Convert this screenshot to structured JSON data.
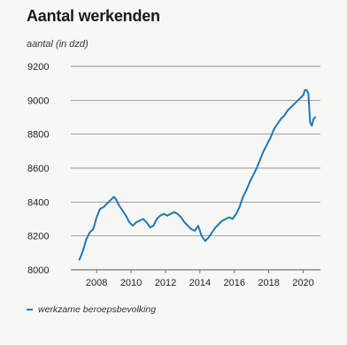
{
  "chart_data": {
    "type": "line",
    "title": "Aantal werkenden",
    "ylabel": "aantal (in dzd)",
    "xlabel": "",
    "ylim": [
      8000,
      9200
    ],
    "xlim": [
      2006.5,
      2021.0
    ],
    "yticks": [
      8000,
      8200,
      8400,
      8600,
      8800,
      9000,
      9200
    ],
    "xticks": [
      2008,
      2010,
      2012,
      2014,
      2016,
      2018,
      2020
    ],
    "ytick_labels": [
      "8000",
      "8200",
      "8400",
      "8600",
      "8800",
      "9000",
      "9200"
    ],
    "xtick_labels": [
      "2008",
      "2010",
      "2012",
      "2014",
      "2016",
      "2018",
      "2020"
    ],
    "grid": "horizontal",
    "legend_position": "bottom-left",
    "series": [
      {
        "name": "werkzame beroepsbevolking",
        "color": "#1f78b4",
        "x": [
          2007.0,
          2007.2,
          2007.4,
          2007.6,
          2007.8,
          2008.0,
          2008.2,
          2008.4,
          2008.6,
          2008.8,
          2009.0,
          2009.1,
          2009.3,
          2009.5,
          2009.7,
          2009.9,
          2010.1,
          2010.3,
          2010.5,
          2010.7,
          2010.9,
          2011.1,
          2011.3,
          2011.5,
          2011.7,
          2011.9,
          2012.1,
          2012.3,
          2012.5,
          2012.7,
          2012.9,
          2013.1,
          2013.3,
          2013.5,
          2013.7,
          2013.9,
          2014.1,
          2014.3,
          2014.5,
          2014.7,
          2014.9,
          2015.1,
          2015.3,
          2015.5,
          2015.7,
          2015.9,
          2016.1,
          2016.3,
          2016.5,
          2016.7,
          2016.9,
          2017.1,
          2017.3,
          2017.5,
          2017.7,
          2017.9,
          2018.1,
          2018.3,
          2018.5,
          2018.7,
          2018.9,
          2019.1,
          2019.3,
          2019.5,
          2019.7,
          2019.9,
          2020.0,
          2020.1,
          2020.2,
          2020.3,
          2020.4,
          2020.5,
          2020.6,
          2020.7
        ],
        "values": [
          8060,
          8110,
          8180,
          8220,
          8240,
          8310,
          8360,
          8370,
          8390,
          8410,
          8430,
          8420,
          8380,
          8350,
          8320,
          8280,
          8260,
          8280,
          8290,
          8300,
          8280,
          8250,
          8260,
          8300,
          8320,
          8330,
          8320,
          8330,
          8340,
          8330,
          8310,
          8280,
          8260,
          8240,
          8230,
          8260,
          8200,
          8170,
          8190,
          8220,
          8250,
          8270,
          8290,
          8300,
          8310,
          8300,
          8330,
          8370,
          8430,
          8470,
          8520,
          8560,
          8600,
          8650,
          8700,
          8740,
          8780,
          8830,
          8860,
          8890,
          8910,
          8940,
          8960,
          8980,
          9000,
          9020,
          9030,
          9060,
          9060,
          9040,
          8870,
          8850,
          8890,
          8900
        ]
      }
    ]
  }
}
